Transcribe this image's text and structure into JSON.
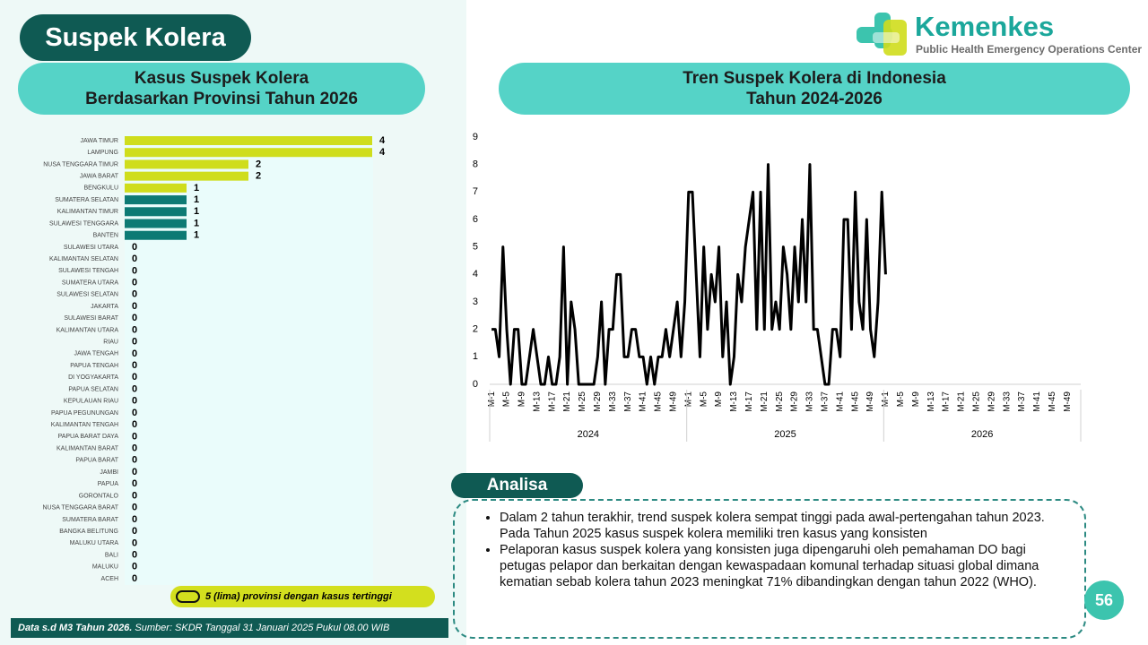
{
  "header": {
    "title": "Suspek Kolera",
    "logo_name": "Kemenkes",
    "logo_subtitle": "Public Health Emergency Operations Center"
  },
  "chart_data": [
    {
      "type": "hbar",
      "title": [
        "Kasus Suspek Kolera",
        "Berdasarkan Provinsi Tahun 2026"
      ],
      "categories": [
        "JAWA TIMUR",
        "LAMPUNG",
        "NUSA TENGGARA TIMUR",
        "JAWA BARAT",
        "BENGKULU",
        "SUMATERA SELATAN",
        "KALIMANTAN TIMUR",
        "SULAWESI TENGGARA",
        "BANTEN",
        "SULAWESI UTARA",
        "KALIMANTAN SELATAN",
        "SULAWESI TENGAH",
        "SUMATERA UTARA",
        "SULAWESI SELATAN",
        "JAKARTA",
        "SULAWESI BARAT",
        "KALIMANTAN UTARA",
        "RIAU",
        "JAWA TENGAH",
        "PAPUA TENGAH",
        "DI YOGYAKARTA",
        "PAPUA SELATAN",
        "KEPULAUAN RIAU",
        "PAPUA PEGUNUNGAN",
        "KALIMANTAN TENGAH",
        "PAPUA BARAT DAYA",
        "KALIMANTAN BARAT",
        "PAPUA BARAT",
        "JAMBI",
        "PAPUA",
        "GORONTALO",
        "NUSA TENGGARA BARAT",
        "SUMATERA BARAT",
        "BANGKA BELITUNG",
        "MALUKU UTARA",
        "BALI",
        "MALUKU",
        "ACEH"
      ],
      "values": [
        4,
        4,
        2,
        2,
        1,
        1,
        1,
        1,
        1,
        0,
        0,
        0,
        0,
        0,
        0,
        0,
        0,
        0,
        0,
        0,
        0,
        0,
        0,
        0,
        0,
        0,
        0,
        0,
        0,
        0,
        0,
        0,
        0,
        0,
        0,
        0,
        0,
        0
      ],
      "colors": [
        "#cfdd1c",
        "#cfdd1c",
        "#cfdd1c",
        "#cfdd1c",
        "#cfdd1c",
        "#0d7a74",
        "#0d7a74",
        "#0d7a74",
        "#0d7a74",
        "#0d7a74",
        "#0d7a74",
        "#0d7a74",
        "#0d7a74",
        "#0d7a74",
        "#0d7a74",
        "#0d7a74",
        "#0d7a74",
        "#0d7a74",
        "#0d7a74",
        "#0d7a74",
        "#0d7a74",
        "#0d7a74",
        "#0d7a74",
        "#0d7a74",
        "#0d7a74",
        "#0d7a74",
        "#0d7a74",
        "#0d7a74",
        "#0d7a74",
        "#0d7a74",
        "#0d7a74",
        "#0d7a74",
        "#0d7a74",
        "#0d7a74",
        "#0d7a74",
        "#0d7a74",
        "#0d7a74",
        "#0d7a74"
      ],
      "legend": "5 (lima) provinsi dengan kasus tertinggi"
    },
    {
      "type": "line",
      "title": [
        "Tren Suspek Kolera di Indonesia",
        "Tahun 2024-2026"
      ],
      "groups": [
        "2024",
        "2025",
        "2026"
      ],
      "categories": [
        "M-1",
        null,
        null,
        null,
        "M-5",
        null,
        null,
        null,
        "M-9",
        null,
        null,
        null,
        "M-13",
        null,
        null,
        null,
        "M-17",
        null,
        null,
        null,
        "M-21",
        null,
        null,
        null,
        "M-25",
        null,
        null,
        null,
        "M-29",
        null,
        null,
        null,
        "M-33",
        null,
        null,
        null,
        "M-37",
        null,
        null,
        null,
        "M-41",
        null,
        null,
        null,
        "M-45",
        null,
        null,
        null,
        "M-49",
        null,
        null,
        null,
        "M-1",
        null,
        null,
        null,
        "M-5",
        null,
        null,
        null,
        "M-9",
        null,
        null,
        null,
        "M-13",
        null,
        null,
        null,
        "M-17",
        null,
        null,
        null,
        "M-21",
        null,
        null,
        null,
        "M-25",
        null,
        null,
        null,
        "M-29",
        null,
        null,
        null,
        "M-33",
        null,
        null,
        null,
        "M-37",
        null,
        null,
        null,
        "M-41",
        null,
        null,
        null,
        "M-45",
        null,
        null,
        null,
        "M-49",
        null,
        null,
        null,
        "M-1",
        null,
        null,
        null,
        "M-5",
        null,
        null,
        null,
        "M-9",
        null,
        null,
        null,
        "M-13",
        null,
        null,
        null,
        "M-17",
        null,
        null,
        null,
        "M-21",
        null,
        null,
        null,
        "M-25",
        null,
        null,
        null,
        "M-29",
        null,
        null,
        null,
        "M-33",
        null,
        null,
        null,
        "M-37",
        null,
        null,
        null,
        "M-41",
        null,
        null,
        null,
        "M-45",
        null,
        null,
        null,
        "M-49",
        null,
        null,
        null
      ],
      "series": [
        {
          "color": "#000000",
          "values": [
            2,
            2,
            1,
            5,
            2,
            0,
            2,
            2,
            0,
            0,
            1,
            2,
            1,
            0,
            0,
            1,
            0,
            0,
            1,
            5,
            0,
            3,
            2,
            0,
            0,
            0,
            0,
            0,
            1,
            3,
            0,
            2,
            2,
            4,
            4,
            1,
            1,
            2,
            2,
            1,
            1,
            0,
            1,
            0,
            1,
            1,
            2,
            1,
            2,
            3,
            1,
            3,
            7,
            7,
            4,
            1,
            5,
            2,
            4,
            3,
            5,
            1,
            3,
            0,
            1,
            4,
            3,
            5,
            6,
            7,
            2,
            7,
            2,
            8,
            2,
            3,
            2,
            5,
            4,
            2,
            5,
            3,
            6,
            3,
            8,
            2,
            2,
            1,
            0,
            0,
            2,
            2,
            1,
            6,
            6,
            2,
            7,
            3,
            2,
            6,
            2,
            1,
            3,
            7,
            4,
            null,
            null,
            null,
            null,
            null,
            null,
            null,
            null,
            null,
            null,
            null,
            null,
            null,
            null,
            null,
            null,
            null,
            null,
            null,
            null,
            null,
            null,
            null,
            null,
            null,
            null,
            null,
            null,
            null,
            null,
            null,
            null,
            null,
            null,
            null,
            null,
            null,
            null,
            null,
            null,
            null,
            null,
            null,
            null,
            null,
            null,
            null,
            null,
            null,
            null,
            null
          ]
        }
      ],
      "ylim": [
        0,
        9
      ],
      "yticks": [
        0,
        1,
        2,
        3,
        4,
        5,
        6,
        7,
        8,
        9
      ]
    }
  ],
  "analysis": {
    "title": "Analisa",
    "bullets": [
      "Dalam 2 tahun terakhir, trend suspek kolera sempat tinggi pada awal-pertengahan tahun 2023. Pada Tahun 2025 kasus suspek kolera memiliki tren kasus yang konsisten",
      "Pelaporan kasus suspek kolera yang konsisten juga dipengaruhi oleh pemahaman DO bagi petugas pelapor dan berkaitan dengan kewaspadaan komunal terhadap situasi global dimana kematian sebab kolera tahun 2023 meningkat 71% dibandingkan dengan tahun 2022 (WHO)."
    ]
  },
  "footer": {
    "bold": "Data s.d M3 Tahun 2026.",
    "text": "Sumber: SKDR Tanggal 31 Januari 2025 Pukul 08.00 WIB"
  },
  "page_number": "56"
}
